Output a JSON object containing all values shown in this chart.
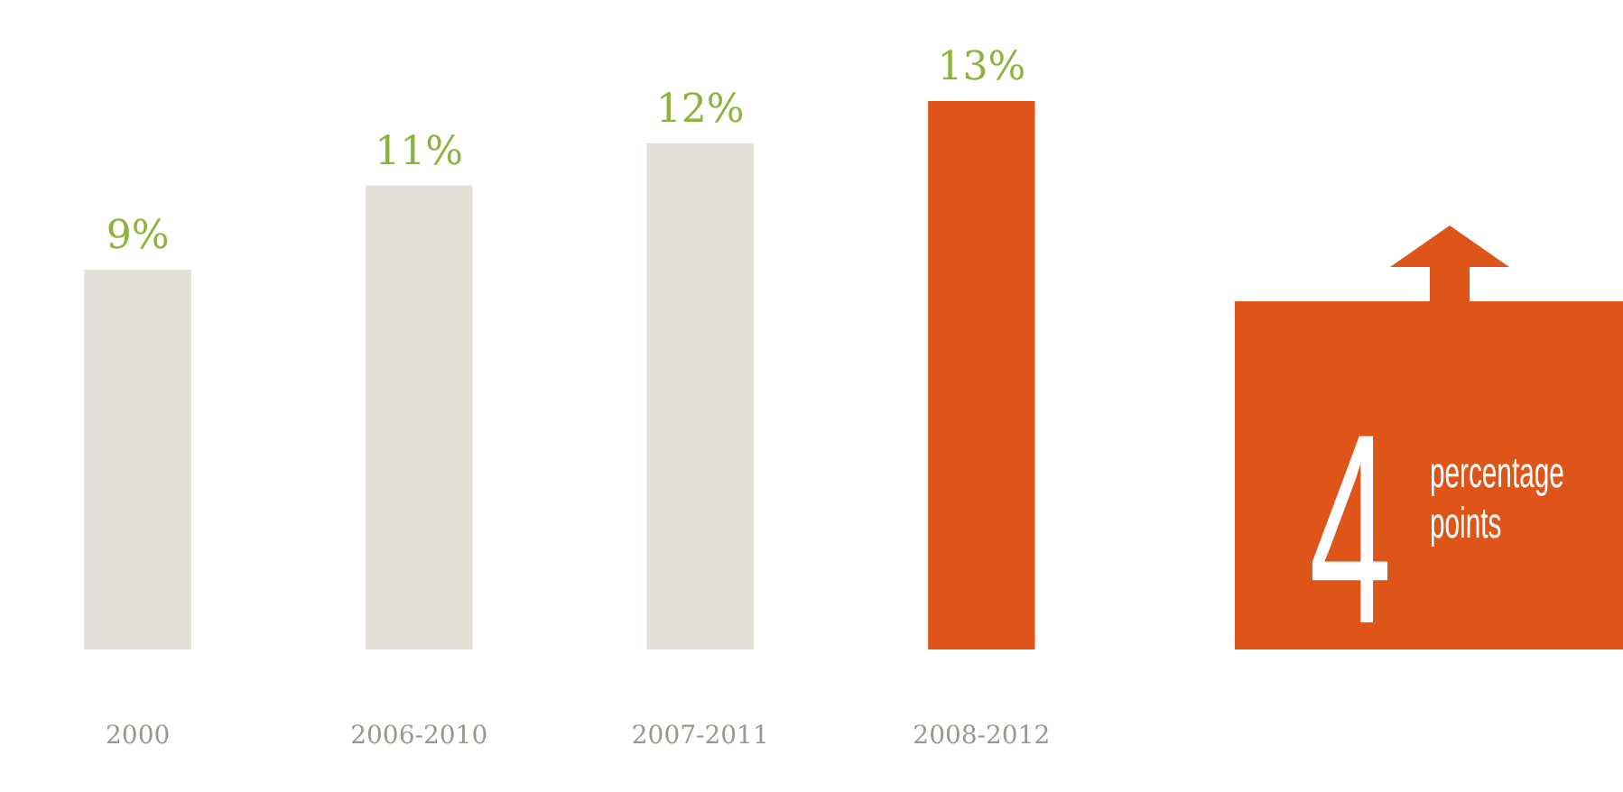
{
  "chart_data": {
    "type": "bar",
    "categories": [
      "2000",
      "2006-2010",
      "2007-2011",
      "2008-2012"
    ],
    "values": [
      9,
      11,
      12,
      13
    ],
    "colors": [
      "#e2e0d6",
      "#e2e0d6",
      "#e2e0d6",
      "#df5519"
    ],
    "value_labels": [
      "9%",
      "11%",
      "12%",
      "13%"
    ],
    "tick_labels": "x",
    "annotations": [
      "4",
      "percentage points"
    ]
  }
}
